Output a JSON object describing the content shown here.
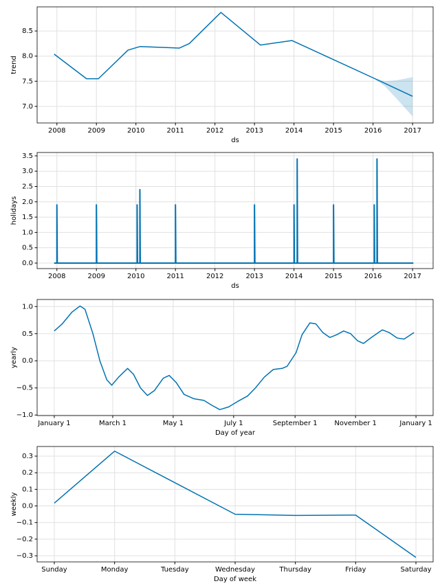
{
  "chart_data": [
    {
      "type": "line",
      "xlabel": "ds",
      "ylabel": "trend",
      "color": "#0072B2",
      "grid": true,
      "x": [
        2007.93,
        2008.75,
        2009.05,
        2009.8,
        2010.1,
        2011.1,
        2011.35,
        2012.15,
        2013.15,
        2013.95,
        2016.05,
        2017.0
      ],
      "values": [
        8.04,
        7.55,
        7.55,
        8.12,
        8.19,
        8.16,
        8.25,
        8.87,
        8.22,
        8.31,
        7.55,
        7.2
      ],
      "band_x": [
        2016.0,
        2016.3,
        2016.6,
        2017.0
      ],
      "band_upper": [
        7.57,
        7.5,
        7.52,
        7.58
      ],
      "band_lower": [
        7.57,
        7.4,
        7.15,
        6.8
      ],
      "xlim": [
        2007.5,
        2017.52
      ],
      "xticks": [
        2008,
        2009,
        2010,
        2011,
        2012,
        2013,
        2014,
        2015,
        2016,
        2017
      ],
      "ylim": [
        6.67,
        8.98
      ],
      "yticks": [
        {
          "value": 7.0,
          "label": "7.0"
        },
        7.5,
        {
          "value": 8.0,
          "label": "8.0"
        },
        8.5
      ]
    },
    {
      "type": "line",
      "xlabel": "ds",
      "ylabel": "holidays",
      "color": "#0072B2",
      "grid": true,
      "x": [
        2007.93,
        2008.0,
        2008.0,
        2008.01,
        2009.0,
        2009.0,
        2009.01,
        2010.03,
        2010.03,
        2010.04,
        2010.1,
        2010.1,
        2010.11,
        2011.0,
        2011.0,
        2011.01,
        2013.0,
        2013.0,
        2013.01,
        2014.0,
        2014.0,
        2014.01,
        2014.08,
        2014.08,
        2014.09,
        2015.0,
        2015.0,
        2015.01,
        2016.03,
        2016.03,
        2016.04,
        2016.1,
        2016.1,
        2016.11,
        2017.02
      ],
      "values": [
        0,
        0,
        1.9,
        0,
        0,
        1.9,
        0,
        0,
        1.9,
        0,
        0,
        2.4,
        0,
        0,
        1.9,
        0,
        0,
        1.9,
        0,
        0,
        1.9,
        0,
        0,
        3.4,
        0,
        0,
        1.9,
        0,
        0,
        1.9,
        0,
        0,
        3.4,
        0,
        0
      ],
      "xlim": [
        2007.5,
        2017.52
      ],
      "xticks": [
        2008,
        2009,
        2010,
        2011,
        2012,
        2013,
        2014,
        2015,
        2016,
        2017
      ],
      "ylim": [
        -0.18,
        3.61
      ],
      "yticks": [
        {
          "value": 0,
          "label": "0.0"
        },
        0.5,
        {
          "value": 1,
          "label": "1.0"
        },
        1.5,
        {
          "value": 2,
          "label": "2.0"
        },
        2.5,
        {
          "value": 3,
          "label": "3.0"
        },
        3.5
      ]
    },
    {
      "type": "line",
      "xlabel": "Day of year",
      "ylabel": "yearly",
      "color": "#0072B2",
      "grid": true,
      "x": [
        0,
        8,
        18,
        26,
        31,
        39,
        46,
        53,
        58,
        65,
        74,
        80,
        87,
        94,
        101,
        110,
        116,
        123,
        131,
        141,
        151,
        159,
        167,
        176,
        185,
        195,
        203,
        212,
        221,
        230,
        235,
        244,
        250,
        258,
        264,
        271,
        278,
        285,
        292,
        299,
        306,
        312,
        320,
        331,
        338,
        346,
        353,
        363
      ],
      "values": [
        0.55,
        0.68,
        0.9,
        1.01,
        0.95,
        0.5,
        0,
        -0.35,
        -0.45,
        -0.3,
        -0.14,
        -0.25,
        -0.5,
        -0.64,
        -0.55,
        -0.32,
        -0.27,
        -0.4,
        -0.62,
        -0.7,
        -0.73,
        -0.82,
        -0.9,
        -0.85,
        -0.75,
        -0.65,
        -0.5,
        -0.3,
        -0.16,
        -0.14,
        -0.1,
        0.15,
        0.48,
        0.7,
        0.68,
        0.52,
        0.43,
        0.48,
        0.55,
        0.5,
        0.37,
        0.32,
        0.43,
        0.57,
        0.52,
        0.42,
        0.4,
        0.52
      ],
      "xlim": [
        -17.3,
        382.3
      ],
      "xticks": [
        {
          "value": 0,
          "label": "January 1"
        },
        {
          "value": 59,
          "label": "March 1"
        },
        {
          "value": 120,
          "label": "May 1"
        },
        {
          "value": 181,
          "label": "July 1"
        },
        {
          "value": 243,
          "label": "September 1"
        },
        {
          "value": 304,
          "label": "November 1"
        },
        {
          "value": 365,
          "label": "January 1"
        }
      ],
      "ylim": [
        -1.01,
        1.13
      ],
      "yticks": [
        {
          "value": -1,
          "label": "−1.0"
        },
        {
          "value": -0.5,
          "label": "−0.5"
        },
        {
          "value": 0,
          "label": "0.0"
        },
        0.5,
        {
          "value": 1,
          "label": "1.0"
        }
      ]
    },
    {
      "type": "line",
      "xlabel": "Day of week",
      "ylabel": "weekly",
      "color": "#0072B2",
      "grid": true,
      "categories": [
        "Sunday",
        "Monday",
        "Tuesday",
        "Wednesday",
        "Thursday",
        "Friday",
        "Saturday"
      ],
      "values": [
        0.017,
        0.33,
        0.14,
        -0.05,
        -0.057,
        -0.055,
        -0.31
      ],
      "ylim": [
        -0.337,
        0.358
      ],
      "yticks": [
        {
          "value": -0.3,
          "label": "−0.3"
        },
        {
          "value": -0.2,
          "label": "−0.2"
        },
        {
          "value": -0.1,
          "label": "−0.1"
        },
        {
          "value": 0,
          "label": "0.0"
        },
        0.1,
        0.2,
        0.3
      ]
    }
  ]
}
